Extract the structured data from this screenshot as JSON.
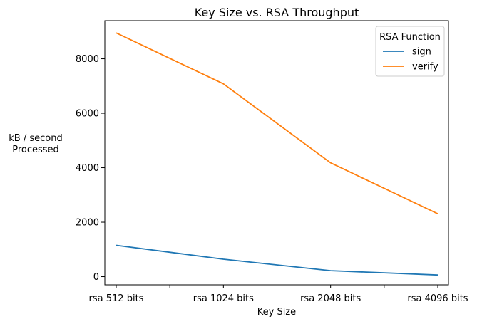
{
  "chart_data": {
    "type": "line",
    "title": "Key Size vs. RSA Throughput",
    "xlabel": "Key Size",
    "ylabel_lines": [
      "kB / second",
      "Processed"
    ],
    "categories": [
      "rsa 512 bits",
      "rsa 1024 bits",
      "rsa 2048 bits",
      "rsa 4096 bits"
    ],
    "yticks": [
      0,
      2000,
      4000,
      6000,
      8000
    ],
    "ylim": [
      -300,
      9400
    ],
    "grid": false,
    "legend": {
      "title": "RSA Function",
      "placement": "top-right"
    },
    "series": [
      {
        "name": "sign",
        "color": "#1f77b4",
        "values": [
          1150,
          640,
          220,
          60
        ]
      },
      {
        "name": "verify",
        "color": "#ff7f0e",
        "values": [
          8950,
          7080,
          4180,
          2310
        ]
      }
    ]
  }
}
